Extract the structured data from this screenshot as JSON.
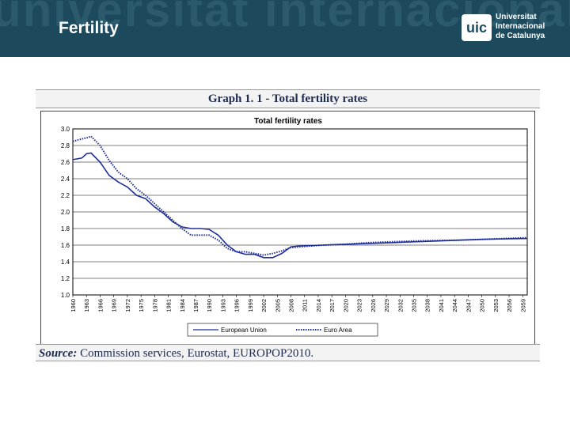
{
  "header": {
    "title": "Fertility",
    "logo": {
      "mark": "uic",
      "lines": [
        "Universitat",
        "Internacional",
        "de Catalunya"
      ]
    }
  },
  "graph": {
    "title": "Graph 1. 1 - Total fertility rates",
    "source_label": "Source:",
    "source_text": "Commission services, Eurostat, EUROPOP2010."
  },
  "chart_data": {
    "type": "line",
    "title": "Total fertility rates",
    "xlabel": "",
    "ylabel": "",
    "ylim": [
      1.0,
      3.0
    ],
    "yticks": [
      "1.0",
      "1.2",
      "1.4",
      "1.6",
      "1.8",
      "2.0",
      "2.2",
      "2.4",
      "2.6",
      "2.8",
      "3.0"
    ],
    "xticks": [
      "1960",
      "1963",
      "1966",
      "1969",
      "1972",
      "1975",
      "1978",
      "1981",
      "1984",
      "1987",
      "1990",
      "1993",
      "1996",
      "1999",
      "2002",
      "2005",
      "2008",
      "2011",
      "2014",
      "2017",
      "2020",
      "2023",
      "2026",
      "2029",
      "2032",
      "2035",
      "2038",
      "2041",
      "2044",
      "2047",
      "2050",
      "2053",
      "2056",
      "2059"
    ],
    "xlim": [
      1960,
      2060
    ],
    "grid": true,
    "legend_position": "bottom",
    "series": [
      {
        "name": "European Union",
        "color": "#1f2f9a",
        "style": "solid",
        "x": [
          1960,
          1962,
          1963,
          1964,
          1966,
          1968,
          1970,
          1971,
          1972,
          1974,
          1976,
          1978,
          1980,
          1982,
          1984,
          1986,
          1988,
          1990,
          1992,
          1994,
          1996,
          1998,
          2000,
          2002,
          2004,
          2006,
          2008,
          2010,
          2015,
          2020,
          2025,
          2030,
          2035,
          2040,
          2045,
          2050,
          2055,
          2060
        ],
        "y": [
          2.63,
          2.65,
          2.7,
          2.71,
          2.6,
          2.44,
          2.36,
          2.33,
          2.3,
          2.2,
          2.16,
          2.06,
          1.98,
          1.88,
          1.82,
          1.8,
          1.8,
          1.79,
          1.72,
          1.6,
          1.52,
          1.49,
          1.49,
          1.45,
          1.45,
          1.5,
          1.58,
          1.59,
          1.6,
          1.61,
          1.62,
          1.63,
          1.64,
          1.65,
          1.66,
          1.67,
          1.675,
          1.68
        ]
      },
      {
        "name": "Euro Area",
        "color": "#1f2f9a",
        "style": "dotted",
        "x": [
          1960,
          1962,
          1963,
          1964,
          1966,
          1968,
          1970,
          1971,
          1972,
          1974,
          1976,
          1978,
          1980,
          1982,
          1984,
          1986,
          1988,
          1990,
          1992,
          1994,
          1996,
          1998,
          2000,
          2002,
          2004,
          2006,
          2008,
          2010,
          2015,
          2020,
          2025,
          2030,
          2035,
          2040,
          2045,
          2050,
          2055,
          2060
        ],
        "y": [
          2.85,
          2.88,
          2.89,
          2.91,
          2.8,
          2.62,
          2.48,
          2.44,
          2.4,
          2.28,
          2.2,
          2.1,
          2.0,
          1.9,
          1.8,
          1.72,
          1.72,
          1.72,
          1.66,
          1.56,
          1.52,
          1.52,
          1.5,
          1.48,
          1.5,
          1.53,
          1.57,
          1.58,
          1.6,
          1.61,
          1.63,
          1.64,
          1.65,
          1.655,
          1.66,
          1.67,
          1.68,
          1.69
        ]
      }
    ]
  }
}
